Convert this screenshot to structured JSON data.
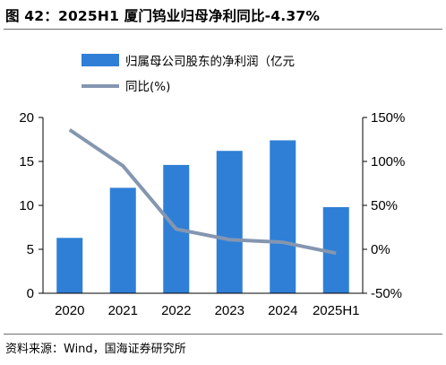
{
  "title": "图 42：2025H1 厦门钨业归母净利同比-4.37%",
  "source": "资料来源：Wind，国海证券研究所",
  "colors": {
    "bar": "#2f7fd6",
    "line": "#8496b0",
    "rule": "#6e6e6e",
    "axis": "#000000"
  },
  "chart_data": {
    "type": "bar",
    "categories": [
      "2020",
      "2021",
      "2022",
      "2023",
      "2024",
      "2025H1"
    ],
    "series": [
      {
        "name": "归属母公司股东的净利润（亿元",
        "type": "bar",
        "axis": "left",
        "values": [
          6.3,
          12.0,
          14.6,
          16.2,
          17.4,
          9.8
        ]
      },
      {
        "name": "同比(%)",
        "type": "line",
        "axis": "right",
        "values": [
          136,
          95,
          23,
          11,
          8,
          -4.37
        ]
      }
    ],
    "y_left": {
      "ylim": [
        0,
        20
      ],
      "ticks": [
        "0",
        "5",
        "10",
        "15",
        "20"
      ]
    },
    "y_right": {
      "ylim": [
        -50,
        150
      ],
      "ticks": [
        "-50%",
        "0%",
        "50%",
        "100%",
        "150%"
      ]
    },
    "legend_position": "top-left",
    "grid": false
  }
}
